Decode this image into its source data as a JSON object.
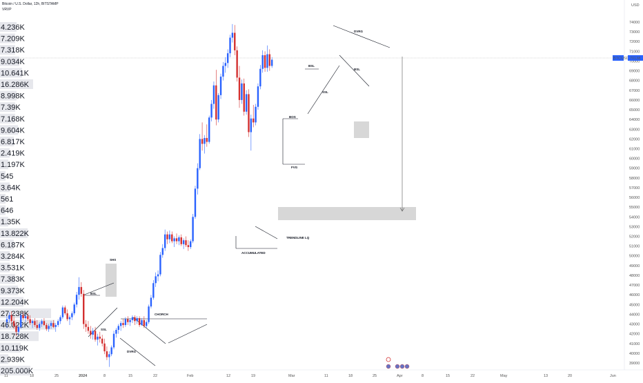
{
  "header": {
    "symbol_line": "Bitcoin / U.S. Dollar, 12h, BITSTAMP",
    "indicator": "VRVP"
  },
  "price_badge": {
    "symbol": "BTCUSD",
    "price": "70138"
  },
  "currency_label": "USD",
  "volume_profile": [
    "4.236K",
    "7.209K",
    "7.318K",
    "9.034K",
    "10.641K",
    "16.286K",
    "8.998K",
    "7.39K",
    "7.168K",
    "9.604K",
    "6.817K",
    "2.419K",
    "1.197K",
    "545",
    "3.64K",
    "561",
    "646",
    "1.35K",
    "13.822K",
    "6.187K",
    "3.284K",
    "3.531K",
    "7.383K",
    "9.373K",
    "12.204K",
    "27.238K",
    "46.022K",
    "18.728K",
    "10.119K",
    "2.939K",
    "205.000K"
  ],
  "chart_data": {
    "type": "candlestick",
    "title": "Bitcoin / U.S. Dollar, 12h, BITSTAMP",
    "x_ticks": [
      "11",
      "18",
      "25",
      "2024",
      "8",
      "15",
      "22",
      "Feb",
      "12",
      "19",
      "Mar",
      "11",
      "18",
      "25",
      "Apr",
      "8",
      "15",
      "22",
      "May",
      "13",
      "20",
      "Jun"
    ],
    "y_ticks": [
      "74000",
      "73000",
      "72000",
      "71000",
      "70000",
      "69000",
      "68000",
      "67000",
      "66000",
      "65000",
      "64000",
      "63000",
      "62000",
      "61000",
      "60000",
      "59000",
      "58000",
      "57000",
      "56000",
      "55000",
      "54000",
      "53000",
      "52000",
      "51000",
      "50000",
      "49000",
      "48000",
      "47000",
      "46000",
      "45000",
      "44000",
      "43000",
      "42000",
      "41000",
      "40000",
      "39000"
    ],
    "ylim": [
      38000,
      74500
    ],
    "last_price": 70138,
    "series": [
      {
        "name": "BTCUSD",
        "candles": [
          [
            43200,
            43800,
            42600,
            43500
          ],
          [
            43500,
            44200,
            43100,
            43900
          ],
          [
            43900,
            44300,
            43000,
            43300
          ],
          [
            43300,
            43700,
            42500,
            42800
          ],
          [
            42800,
            43200,
            41800,
            42200
          ],
          [
            42200,
            42900,
            41900,
            42700
          ],
          [
            42700,
            44100,
            42500,
            43900
          ],
          [
            43900,
            44200,
            43400,
            43600
          ],
          [
            43600,
            44000,
            43200,
            43800
          ],
          [
            43800,
            44100,
            43300,
            43500
          ],
          [
            43500,
            43900,
            42900,
            43100
          ],
          [
            43100,
            43500,
            42600,
            43300
          ],
          [
            43300,
            43600,
            42700,
            42900
          ],
          [
            42900,
            43400,
            42400,
            42600
          ],
          [
            42600,
            43200,
            42300,
            43000
          ],
          [
            43000,
            43500,
            42700,
            43300
          ],
          [
            43300,
            43600,
            42800,
            42900
          ],
          [
            42900,
            43100,
            42300,
            42500
          ],
          [
            42500,
            43000,
            42200,
            42800
          ],
          [
            42800,
            43300,
            42500,
            43100
          ],
          [
            43100,
            43400,
            42600,
            42700
          ],
          [
            42700,
            43100,
            42200,
            42900
          ],
          [
            42900,
            43500,
            42700,
            43300
          ],
          [
            43300,
            43900,
            43000,
            43700
          ],
          [
            43700,
            44900,
            43500,
            44700
          ],
          [
            44700,
            44900,
            43900,
            44100
          ],
          [
            44100,
            44500,
            43300,
            43500
          ],
          [
            43500,
            43900,
            42900,
            43700
          ],
          [
            43700,
            44300,
            43400,
            44100
          ],
          [
            44100,
            45200,
            43900,
            45000
          ],
          [
            45000,
            46300,
            44700,
            46000
          ],
          [
            46000,
            47800,
            45500,
            46800
          ],
          [
            46800,
            47300,
            45800,
            46100
          ],
          [
            46100,
            46500,
            42500,
            43000
          ],
          [
            43000,
            43400,
            42200,
            42700
          ],
          [
            42700,
            43300,
            42000,
            42300
          ],
          [
            42300,
            42800,
            41500,
            41900
          ],
          [
            41900,
            42600,
            41400,
            42300
          ],
          [
            42300,
            42700,
            41200,
            41400
          ],
          [
            41400,
            42000,
            40800,
            41700
          ],
          [
            41700,
            42200,
            41100,
            41500
          ],
          [
            41500,
            41900,
            40700,
            41000
          ],
          [
            41000,
            41500,
            39900,
            40200
          ],
          [
            40200,
            40700,
            39300,
            39600
          ],
          [
            39600,
            40200,
            38600,
            39900
          ],
          [
            39900,
            40800,
            39700,
            40600
          ],
          [
            40600,
            42300,
            40400,
            42000
          ],
          [
            42000,
            42600,
            41600,
            42400
          ],
          [
            42400,
            43000,
            42000,
            42800
          ],
          [
            42800,
            43300,
            42300,
            43100
          ],
          [
            43100,
            43500,
            42600,
            42900
          ],
          [
            42900,
            43700,
            42700,
            43500
          ],
          [
            43500,
            43800,
            42900,
            43200
          ],
          [
            43200,
            43600,
            42800,
            43400
          ],
          [
            43400,
            43900,
            43100,
            43700
          ],
          [
            43700,
            43900,
            42900,
            43300
          ],
          [
            43300,
            43800,
            43000,
            43600
          ],
          [
            43600,
            43800,
            42700,
            42900
          ],
          [
            42900,
            43600,
            42800,
            43400
          ],
          [
            43400,
            43800,
            42600,
            42800
          ],
          [
            42800,
            43400,
            42600,
            43200
          ],
          [
            43200,
            45000,
            43000,
            44800
          ],
          [
            44800,
            46000,
            44600,
            45700
          ],
          [
            45700,
            47500,
            45500,
            47200
          ],
          [
            47200,
            48300,
            46800,
            47900
          ],
          [
            47900,
            48500,
            47400,
            48100
          ],
          [
            48100,
            50400,
            47900,
            50100
          ],
          [
            50100,
            51200,
            49800,
            50800
          ],
          [
            50800,
            52700,
            50500,
            52200
          ],
          [
            52200,
            52500,
            51200,
            51700
          ],
          [
            51700,
            52600,
            51300,
            52200
          ],
          [
            52200,
            52500,
            51300,
            51500
          ],
          [
            51500,
            52000,
            50900,
            51800
          ],
          [
            51800,
            52300,
            51200,
            51500
          ],
          [
            51500,
            52100,
            51100,
            51900
          ],
          [
            51900,
            52200,
            51000,
            51200
          ],
          [
            51200,
            51800,
            50700,
            51600
          ],
          [
            51600,
            52000,
            50900,
            51100
          ],
          [
            51100,
            51600,
            50500,
            50900
          ],
          [
            50900,
            51700,
            50700,
            51500
          ],
          [
            51500,
            54300,
            51300,
            54000
          ],
          [
            54000,
            57200,
            53800,
            56900
          ],
          [
            56900,
            59500,
            56300,
            59000
          ],
          [
            59000,
            62500,
            58800,
            62000
          ],
          [
            62000,
            63700,
            60800,
            61500
          ],
          [
            61500,
            62400,
            60500,
            62100
          ],
          [
            62100,
            63500,
            61200,
            61700
          ],
          [
            61700,
            64400,
            61500,
            64200
          ],
          [
            64200,
            66000,
            63800,
            65600
          ],
          [
            65600,
            67900,
            65100,
            67500
          ],
          [
            67500,
            69100,
            63400,
            64000
          ],
          [
            64000,
            66700,
            63700,
            66500
          ],
          [
            66500,
            68700,
            66100,
            68400
          ],
          [
            68400,
            69900,
            68000,
            69500
          ],
          [
            69500,
            70400,
            68800,
            69800
          ],
          [
            69800,
            71200,
            69300,
            70800
          ],
          [
            70800,
            72700,
            70400,
            72400
          ],
          [
            72400,
            73800,
            71900,
            72900
          ],
          [
            72900,
            73700,
            70600,
            71100
          ],
          [
            71100,
            71500,
            67900,
            68300
          ],
          [
            68300,
            69500,
            65200,
            66000
          ],
          [
            66000,
            68100,
            65600,
            67700
          ],
          [
            67700,
            68200,
            64400,
            64800
          ],
          [
            64800,
            67000,
            64500,
            66600
          ],
          [
            66600,
            67100,
            62200,
            62700
          ],
          [
            62700,
            64500,
            60800,
            64100
          ],
          [
            64100,
            65500,
            63200,
            63700
          ],
          [
            63700,
            65600,
            63400,
            65300
          ],
          [
            65300,
            67700,
            65000,
            67400
          ],
          [
            67400,
            69600,
            67100,
            69200
          ],
          [
            69200,
            71100,
            68800,
            70600
          ],
          [
            70600,
            71000,
            68900,
            69300
          ],
          [
            69300,
            71600,
            68900,
            70700
          ],
          [
            70700,
            71200,
            69000,
            69500
          ],
          [
            69500,
            70400,
            69300,
            70138
          ]
        ]
      }
    ],
    "annotations": [
      "SHS",
      "BSL",
      "SSL",
      "CHORCH",
      "DVRG",
      "ACCUMULATED",
      "TRENDLINE LQ",
      "BOS",
      "FVG",
      "BSL",
      "SSL",
      "BSL",
      "DVRG"
    ]
  }
}
